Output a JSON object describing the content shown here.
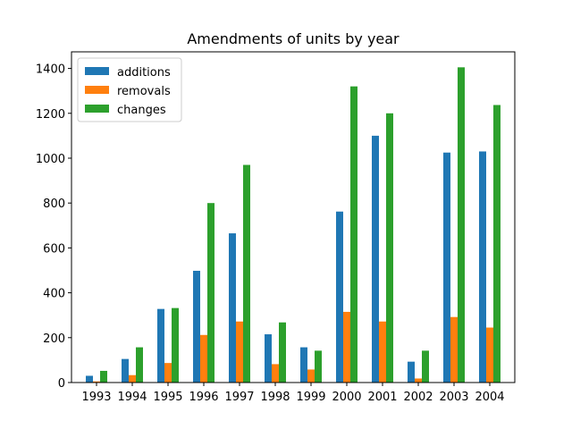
{
  "chart_data": {
    "type": "bar",
    "title": "Amendments of units by year",
    "xlabel": "",
    "ylabel": "",
    "categories": [
      "1993",
      "1994",
      "1995",
      "1996",
      "1997",
      "1998",
      "1999",
      "2000",
      "2001",
      "2002",
      "2003",
      "2004"
    ],
    "series": [
      {
        "name": "additions",
        "color": "#1f77b4",
        "values": [
          30,
          105,
          328,
          498,
          665,
          215,
          157,
          762,
          1100,
          93,
          1025,
          1030
        ]
      },
      {
        "name": "removals",
        "color": "#ff7f0e",
        "values": [
          5,
          33,
          87,
          212,
          272,
          82,
          58,
          315,
          272,
          18,
          292,
          245
        ]
      },
      {
        "name": "changes",
        "color": "#2ca02c",
        "values": [
          52,
          157,
          332,
          800,
          970,
          268,
          142,
          1320,
          1200,
          142,
          1405,
          1237
        ]
      }
    ],
    "ylim": [
      0,
      1474
    ],
    "yticks": [
      0,
      200,
      400,
      600,
      800,
      1000,
      1200,
      1400
    ],
    "legend": "top-left",
    "grid": false
  }
}
